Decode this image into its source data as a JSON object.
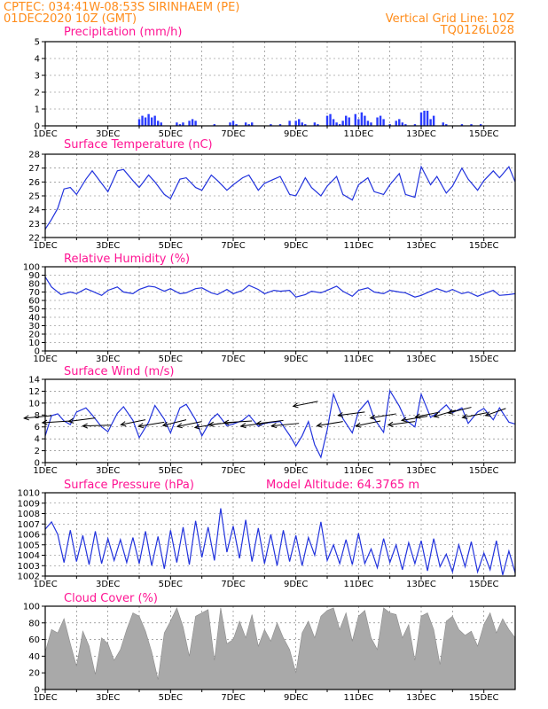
{
  "header": {
    "line1_left": "CPTEC:   034:41W-08:53S   SIRINHAEM (PE)",
    "line2_left": "01DEC2020 10Z (GMT)",
    "line1_right": "Vertical Grid Line: 10Z",
    "line2_right": "TQ0126L028"
  },
  "colors": {
    "header": "#ff8c1a",
    "panel_title": "#ff1493",
    "line": "#2233dd",
    "bars": "#2a3cff",
    "wind_arrow": "#000000",
    "cloud": "#a9a9a9"
  },
  "chart_data": [
    {
      "id": "precip",
      "type": "bar",
      "title": "Precipitation (mm/h)",
      "ylim": [
        0,
        5
      ],
      "yticks": [
        "0",
        "1",
        "2",
        "3",
        "4",
        "5"
      ],
      "xticks": [
        "1DEC",
        "3DEC",
        "5DEC",
        "7DEC",
        "9DEC",
        "11DEC",
        "13DEC",
        "15DEC"
      ],
      "x": [
        4.0,
        4.1,
        4.2,
        4.3,
        4.4,
        4.5,
        4.6,
        4.7,
        5.2,
        5.3,
        5.4,
        5.6,
        5.7,
        5.8,
        6.4,
        6.9,
        7.0,
        7.1,
        7.4,
        7.5,
        7.6,
        8.2,
        8.5,
        8.8,
        9.0,
        9.1,
        9.2,
        9.3,
        9.6,
        9.7,
        10.0,
        10.1,
        10.2,
        10.3,
        10.4,
        10.5,
        10.6,
        10.7,
        10.9,
        11.0,
        11.1,
        11.2,
        11.3,
        11.4,
        11.6,
        11.7,
        11.8,
        12.0,
        12.2,
        12.3,
        12.4,
        12.5,
        12.8,
        13.0,
        13.1,
        13.2,
        13.3,
        13.4,
        13.7,
        13.8,
        14.3,
        14.6,
        14.9
      ],
      "values": [
        0.4,
        0.6,
        0.5,
        0.7,
        0.5,
        0.6,
        0.3,
        0.2,
        0.2,
        0.1,
        0.2,
        0.3,
        0.4,
        0.3,
        0.1,
        0.2,
        0.3,
        0.1,
        0.2,
        0.1,
        0.2,
        0.1,
        0.1,
        0.3,
        0.3,
        0.4,
        0.2,
        0.1,
        0.2,
        0.1,
        0.6,
        0.7,
        0.4,
        0.2,
        0.1,
        0.3,
        0.6,
        0.5,
        0.7,
        0.4,
        0.8,
        0.6,
        0.3,
        0.2,
        0.5,
        0.6,
        0.4,
        0.1,
        0.3,
        0.4,
        0.2,
        0.1,
        0.1,
        0.8,
        0.9,
        0.9,
        0.4,
        0.6,
        0.2,
        0.1,
        0.1,
        0.1,
        0.1
      ]
    },
    {
      "id": "temp",
      "type": "line",
      "title": "Surface Temperature (nC)",
      "ylim": [
        22,
        28
      ],
      "yticks": [
        "22",
        "23",
        "24",
        "25",
        "26",
        "27",
        "28"
      ],
      "xticks": [
        "1DEC",
        "3DEC",
        "5DEC",
        "7DEC",
        "9DEC",
        "11DEC",
        "13DEC",
        "15DEC"
      ],
      "x": [
        1.0,
        1.2,
        1.4,
        1.6,
        1.8,
        2.0,
        2.3,
        2.5,
        2.8,
        3.0,
        3.3,
        3.5,
        3.8,
        4.0,
        4.3,
        4.5,
        4.8,
        5.0,
        5.3,
        5.5,
        5.8,
        6.0,
        6.3,
        6.5,
        6.8,
        7.0,
        7.3,
        7.5,
        7.8,
        8.0,
        8.3,
        8.5,
        8.8,
        9.0,
        9.3,
        9.5,
        9.8,
        10.0,
        10.3,
        10.5,
        10.8,
        11.0,
        11.3,
        11.5,
        11.8,
        12.0,
        12.3,
        12.5,
        12.8,
        13.0,
        13.3,
        13.5,
        13.8,
        14.0,
        14.3,
        14.5,
        14.8,
        15.0,
        15.3,
        15.5,
        15.8,
        16.0
      ],
      "values": [
        22.6,
        23.3,
        24.1,
        25.5,
        25.6,
        25.1,
        26.2,
        26.8,
        25.9,
        25.3,
        26.8,
        26.9,
        26.1,
        25.6,
        26.5,
        26.0,
        25.1,
        24.8,
        26.2,
        26.3,
        25.6,
        25.4,
        26.5,
        26.1,
        25.4,
        25.8,
        26.3,
        26.5,
        25.4,
        25.9,
        26.2,
        26.4,
        25.1,
        25.0,
        26.3,
        25.6,
        25.0,
        25.7,
        26.4,
        25.1,
        24.7,
        25.8,
        26.3,
        25.3,
        25.1,
        25.8,
        26.6,
        25.1,
        24.9,
        27.1,
        25.8,
        26.4,
        25.2,
        25.7,
        27.0,
        26.2,
        25.4,
        26.1,
        26.8,
        26.3,
        27.1,
        26.0
      ]
    },
    {
      "id": "rh",
      "type": "line",
      "title": "Relative Humidity (%)",
      "ylim": [
        0,
        100
      ],
      "yticks": [
        "0",
        "10",
        "20",
        "30",
        "40",
        "50",
        "60",
        "70",
        "80",
        "90",
        "100"
      ],
      "xticks": [
        "1DEC",
        "3DEC",
        "5DEC",
        "7DEC",
        "9DEC",
        "11DEC",
        "13DEC",
        "15DEC"
      ],
      "x": [
        1.0,
        1.2,
        1.5,
        1.8,
        2.0,
        2.3,
        2.5,
        2.8,
        3.0,
        3.3,
        3.5,
        3.8,
        4.0,
        4.3,
        4.5,
        4.8,
        5.0,
        5.3,
        5.5,
        5.8,
        6.0,
        6.3,
        6.5,
        6.8,
        7.0,
        7.3,
        7.5,
        7.8,
        8.0,
        8.3,
        8.5,
        8.8,
        9.0,
        9.3,
        9.5,
        9.8,
        10.0,
        10.3,
        10.5,
        10.8,
        11.0,
        11.3,
        11.5,
        11.8,
        12.0,
        12.3,
        12.5,
        12.8,
        13.0,
        13.3,
        13.5,
        13.8,
        14.0,
        14.3,
        14.5,
        14.8,
        15.0,
        15.3,
        15.5,
        15.8,
        16.0
      ],
      "values": [
        88,
        76,
        67,
        70,
        68,
        74,
        71,
        66,
        72,
        76,
        70,
        68,
        73,
        77,
        76,
        71,
        74,
        68,
        69,
        74,
        75,
        69,
        67,
        73,
        68,
        72,
        78,
        73,
        68,
        72,
        71,
        72,
        64,
        67,
        71,
        69,
        72,
        77,
        71,
        65,
        72,
        75,
        70,
        68,
        72,
        70,
        69,
        64,
        66,
        71,
        74,
        70,
        73,
        68,
        70,
        65,
        68,
        72,
        66,
        67,
        68
      ]
    },
    {
      "id": "wind",
      "type": "line",
      "title": "Surface Wind (m/s)",
      "ylim": [
        0,
        14
      ],
      "yticks": [
        "0",
        "2",
        "4",
        "6",
        "8",
        "10",
        "12",
        "14"
      ],
      "xticks": [
        "1DEC",
        "3DEC",
        "5DEC",
        "7DEC",
        "9DEC",
        "11DEC",
        "13DEC",
        "15DEC"
      ],
      "x": [
        1.0,
        1.2,
        1.4,
        1.6,
        1.8,
        2.0,
        2.3,
        2.5,
        2.8,
        3.0,
        3.3,
        3.5,
        3.8,
        4.0,
        4.3,
        4.5,
        4.8,
        5.0,
        5.3,
        5.5,
        5.8,
        6.0,
        6.3,
        6.5,
        6.8,
        7.0,
        7.3,
        7.5,
        7.8,
        8.0,
        8.3,
        8.5,
        8.8,
        9.0,
        9.2,
        9.4,
        9.6,
        9.8,
        10.0,
        10.2,
        10.5,
        10.8,
        11.0,
        11.3,
        11.5,
        11.8,
        12.0,
        12.3,
        12.5,
        12.8,
        13.0,
        13.3,
        13.5,
        13.8,
        14.0,
        14.3,
        14.5,
        14.8,
        15.0,
        15.3,
        15.5,
        15.8,
        16.0
      ],
      "values": [
        4.5,
        7.9,
        8.2,
        7.0,
        6.4,
        8.5,
        9.2,
        8.0,
        6.0,
        5.2,
        8.3,
        9.4,
        7.1,
        4.2,
        6.8,
        9.6,
        7.3,
        5.0,
        9.2,
        9.8,
        7.2,
        4.5,
        7.3,
        8.2,
        6.2,
        6.5,
        7.1,
        8.0,
        6.1,
        6.6,
        6.8,
        6.9,
        4.6,
        2.8,
        4.5,
        6.9,
        3.0,
        0.9,
        5.5,
        11.5,
        7.4,
        5.0,
        8.6,
        10.4,
        7.4,
        5.1,
        12.1,
        9.5,
        7.2,
        6.0,
        11.5,
        7.6,
        8.3,
        9.7,
        8.4,
        9.2,
        6.6,
        8.5,
        9.1,
        7.2,
        9.2,
        6.8,
        6.5
      ],
      "arrows": {
        "x": [
          1.2,
          1.8,
          2.6,
          3.1,
          4.2,
          4.8,
          5.5,
          6.0,
          6.6,
          7.1,
          7.6,
          8.1,
          8.6,
          9.1,
          9.7,
          10.5,
          11.2,
          11.7,
          12.2,
          12.8,
          13.2,
          13.6,
          14.1,
          14.6,
          15.1,
          15.7
        ],
        "speed": [
          7.9,
          7.0,
          7.5,
          6.3,
          7.2,
          6.8,
          7.2,
          6.9,
          6.6,
          6.8,
          7.0,
          6.7,
          7.1,
          6.6,
          10.3,
          6.9,
          8.5,
          7.0,
          8.2,
          6.9,
          7.8,
          8.5,
          8.8,
          9.3,
          8.4,
          9.1
        ],
        "dir": [
          105,
          100,
          110,
          95,
          120,
          115,
          125,
          120,
          115,
          105,
          100,
          110,
          110,
          105,
          120,
          115,
          110,
          120,
          115,
          110,
          115,
          120,
          130,
          125,
          120,
          135
        ]
      }
    },
    {
      "id": "pressure",
      "type": "line",
      "title": "Surface Pressure (hPa)",
      "annotation": "Model Altitude: 64.3765 m",
      "ylim": [
        1002,
        1010
      ],
      "yticks": [
        "1002",
        "1003",
        "1004",
        "1005",
        "1006",
        "1007",
        "1008",
        "1009",
        "1010"
      ],
      "xticks": [
        "1DEC",
        "3DEC",
        "5DEC",
        "7DEC",
        "9DEC",
        "11DEC",
        "13DEC",
        "15DEC"
      ],
      "x": [
        1.0,
        1.2,
        1.4,
        1.6,
        1.8,
        2.0,
        2.2,
        2.4,
        2.6,
        2.8,
        3.0,
        3.2,
        3.4,
        3.6,
        3.8,
        4.0,
        4.2,
        4.4,
        4.6,
        4.8,
        5.0,
        5.2,
        5.4,
        5.6,
        5.8,
        6.0,
        6.2,
        6.4,
        6.6,
        6.8,
        7.0,
        7.2,
        7.4,
        7.6,
        7.8,
        8.0,
        8.2,
        8.4,
        8.6,
        8.8,
        9.0,
        9.2,
        9.4,
        9.6,
        9.8,
        10.0,
        10.2,
        10.4,
        10.6,
        10.8,
        11.0,
        11.2,
        11.4,
        11.6,
        11.8,
        12.0,
        12.2,
        12.4,
        12.6,
        12.8,
        13.0,
        13.2,
        13.4,
        13.6,
        13.8,
        14.0,
        14.2,
        14.4,
        14.6,
        14.8,
        15.0,
        15.2,
        15.4,
        15.6,
        15.8,
        16.0
      ],
      "values": [
        1006.5,
        1007.2,
        1006.0,
        1003.3,
        1006.4,
        1003.4,
        1005.9,
        1003.1,
        1006.3,
        1003.2,
        1005.6,
        1003.5,
        1005.5,
        1003.3,
        1005.7,
        1003.2,
        1006.3,
        1003.0,
        1005.8,
        1002.7,
        1006.4,
        1003.3,
        1006.7,
        1003.1,
        1007.3,
        1003.8,
        1006.7,
        1003.5,
        1008.5,
        1004.3,
        1006.8,
        1003.7,
        1007.4,
        1003.4,
        1006.6,
        1003.2,
        1006.0,
        1003.0,
        1006.4,
        1003.4,
        1005.9,
        1003.0,
        1005.7,
        1004.0,
        1007.2,
        1003.5,
        1005.0,
        1003.2,
        1005.5,
        1003.1,
        1006.1,
        1003.2,
        1004.6,
        1002.8,
        1005.6,
        1003.3,
        1005.0,
        1002.6,
        1005.2,
        1003.2,
        1005.4,
        1002.5,
        1005.6,
        1002.9,
        1004.1,
        1002.4,
        1005.0,
        1002.9,
        1005.3,
        1002.4,
        1004.2,
        1002.6,
        1005.4,
        1002.1,
        1004.4,
        1002.3
      ]
    },
    {
      "id": "cloud",
      "type": "area",
      "title": "Cloud Cover (%)",
      "ylim": [
        0,
        100
      ],
      "yticks": [
        "0",
        "20",
        "40",
        "60",
        "80",
        "100"
      ],
      "xticks": [
        "1DEC",
        "3DEC",
        "5DEC",
        "7DEC",
        "9DEC",
        "11DEC",
        "13DEC",
        "15DEC"
      ],
      "x": [
        1.0,
        1.2,
        1.4,
        1.6,
        1.8,
        2.0,
        2.2,
        2.4,
        2.6,
        2.8,
        3.0,
        3.2,
        3.4,
        3.6,
        3.8,
        4.0,
        4.2,
        4.4,
        4.6,
        4.8,
        5.0,
        5.2,
        5.4,
        5.6,
        5.8,
        6.0,
        6.2,
        6.4,
        6.6,
        6.8,
        7.0,
        7.2,
        7.4,
        7.6,
        7.8,
        8.0,
        8.2,
        8.4,
        8.6,
        8.8,
        9.0,
        9.2,
        9.4,
        9.6,
        9.8,
        10.0,
        10.2,
        10.4,
        10.6,
        10.8,
        11.0,
        11.2,
        11.4,
        11.6,
        11.8,
        12.0,
        12.2,
        12.4,
        12.6,
        12.8,
        13.0,
        13.2,
        13.4,
        13.6,
        13.8,
        14.0,
        14.2,
        14.4,
        14.6,
        14.8,
        15.0,
        15.2,
        15.4,
        15.6,
        15.8,
        16.0
      ],
      "values": [
        45,
        72,
        68,
        85,
        55,
        28,
        70,
        52,
        18,
        62,
        55,
        35,
        48,
        72,
        92,
        88,
        70,
        45,
        12,
        68,
        82,
        98,
        75,
        40,
        88,
        92,
        96,
        35,
        98,
        55,
        60,
        82,
        62,
        90,
        52,
        72,
        58,
        80,
        62,
        48,
        20,
        68,
        82,
        62,
        88,
        95,
        98,
        72,
        92,
        58,
        88,
        95,
        62,
        48,
        98,
        92,
        90,
        62,
        78,
        35,
        88,
        92,
        72,
        30,
        82,
        88,
        72,
        65,
        70,
        52,
        78,
        92,
        68,
        85,
        72,
        62
      ]
    }
  ]
}
